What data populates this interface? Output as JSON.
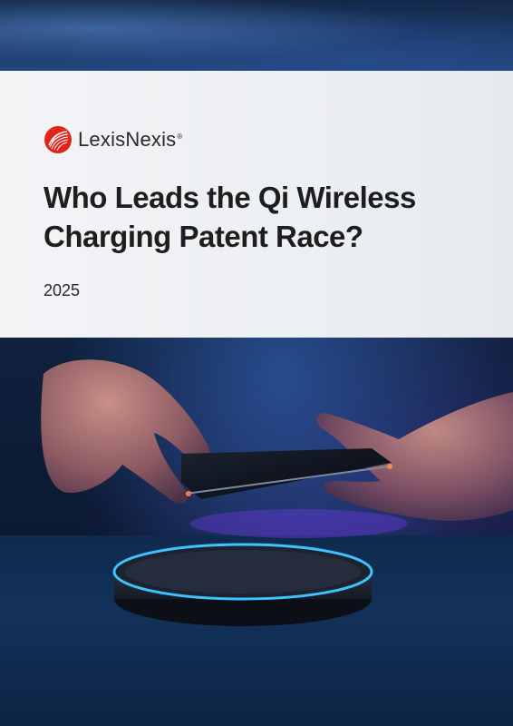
{
  "brand": {
    "name": "LexisNexis",
    "trademark": "®",
    "color": "#e2231a"
  },
  "cover": {
    "title_line1": "Who Leads the Qi Wireless",
    "title_line2": "Charging Patent Race?",
    "year": "2025"
  },
  "image": {
    "description_icon": "hands-phone-wireless-charger-image",
    "accent_glow": "#3ec3ff"
  }
}
